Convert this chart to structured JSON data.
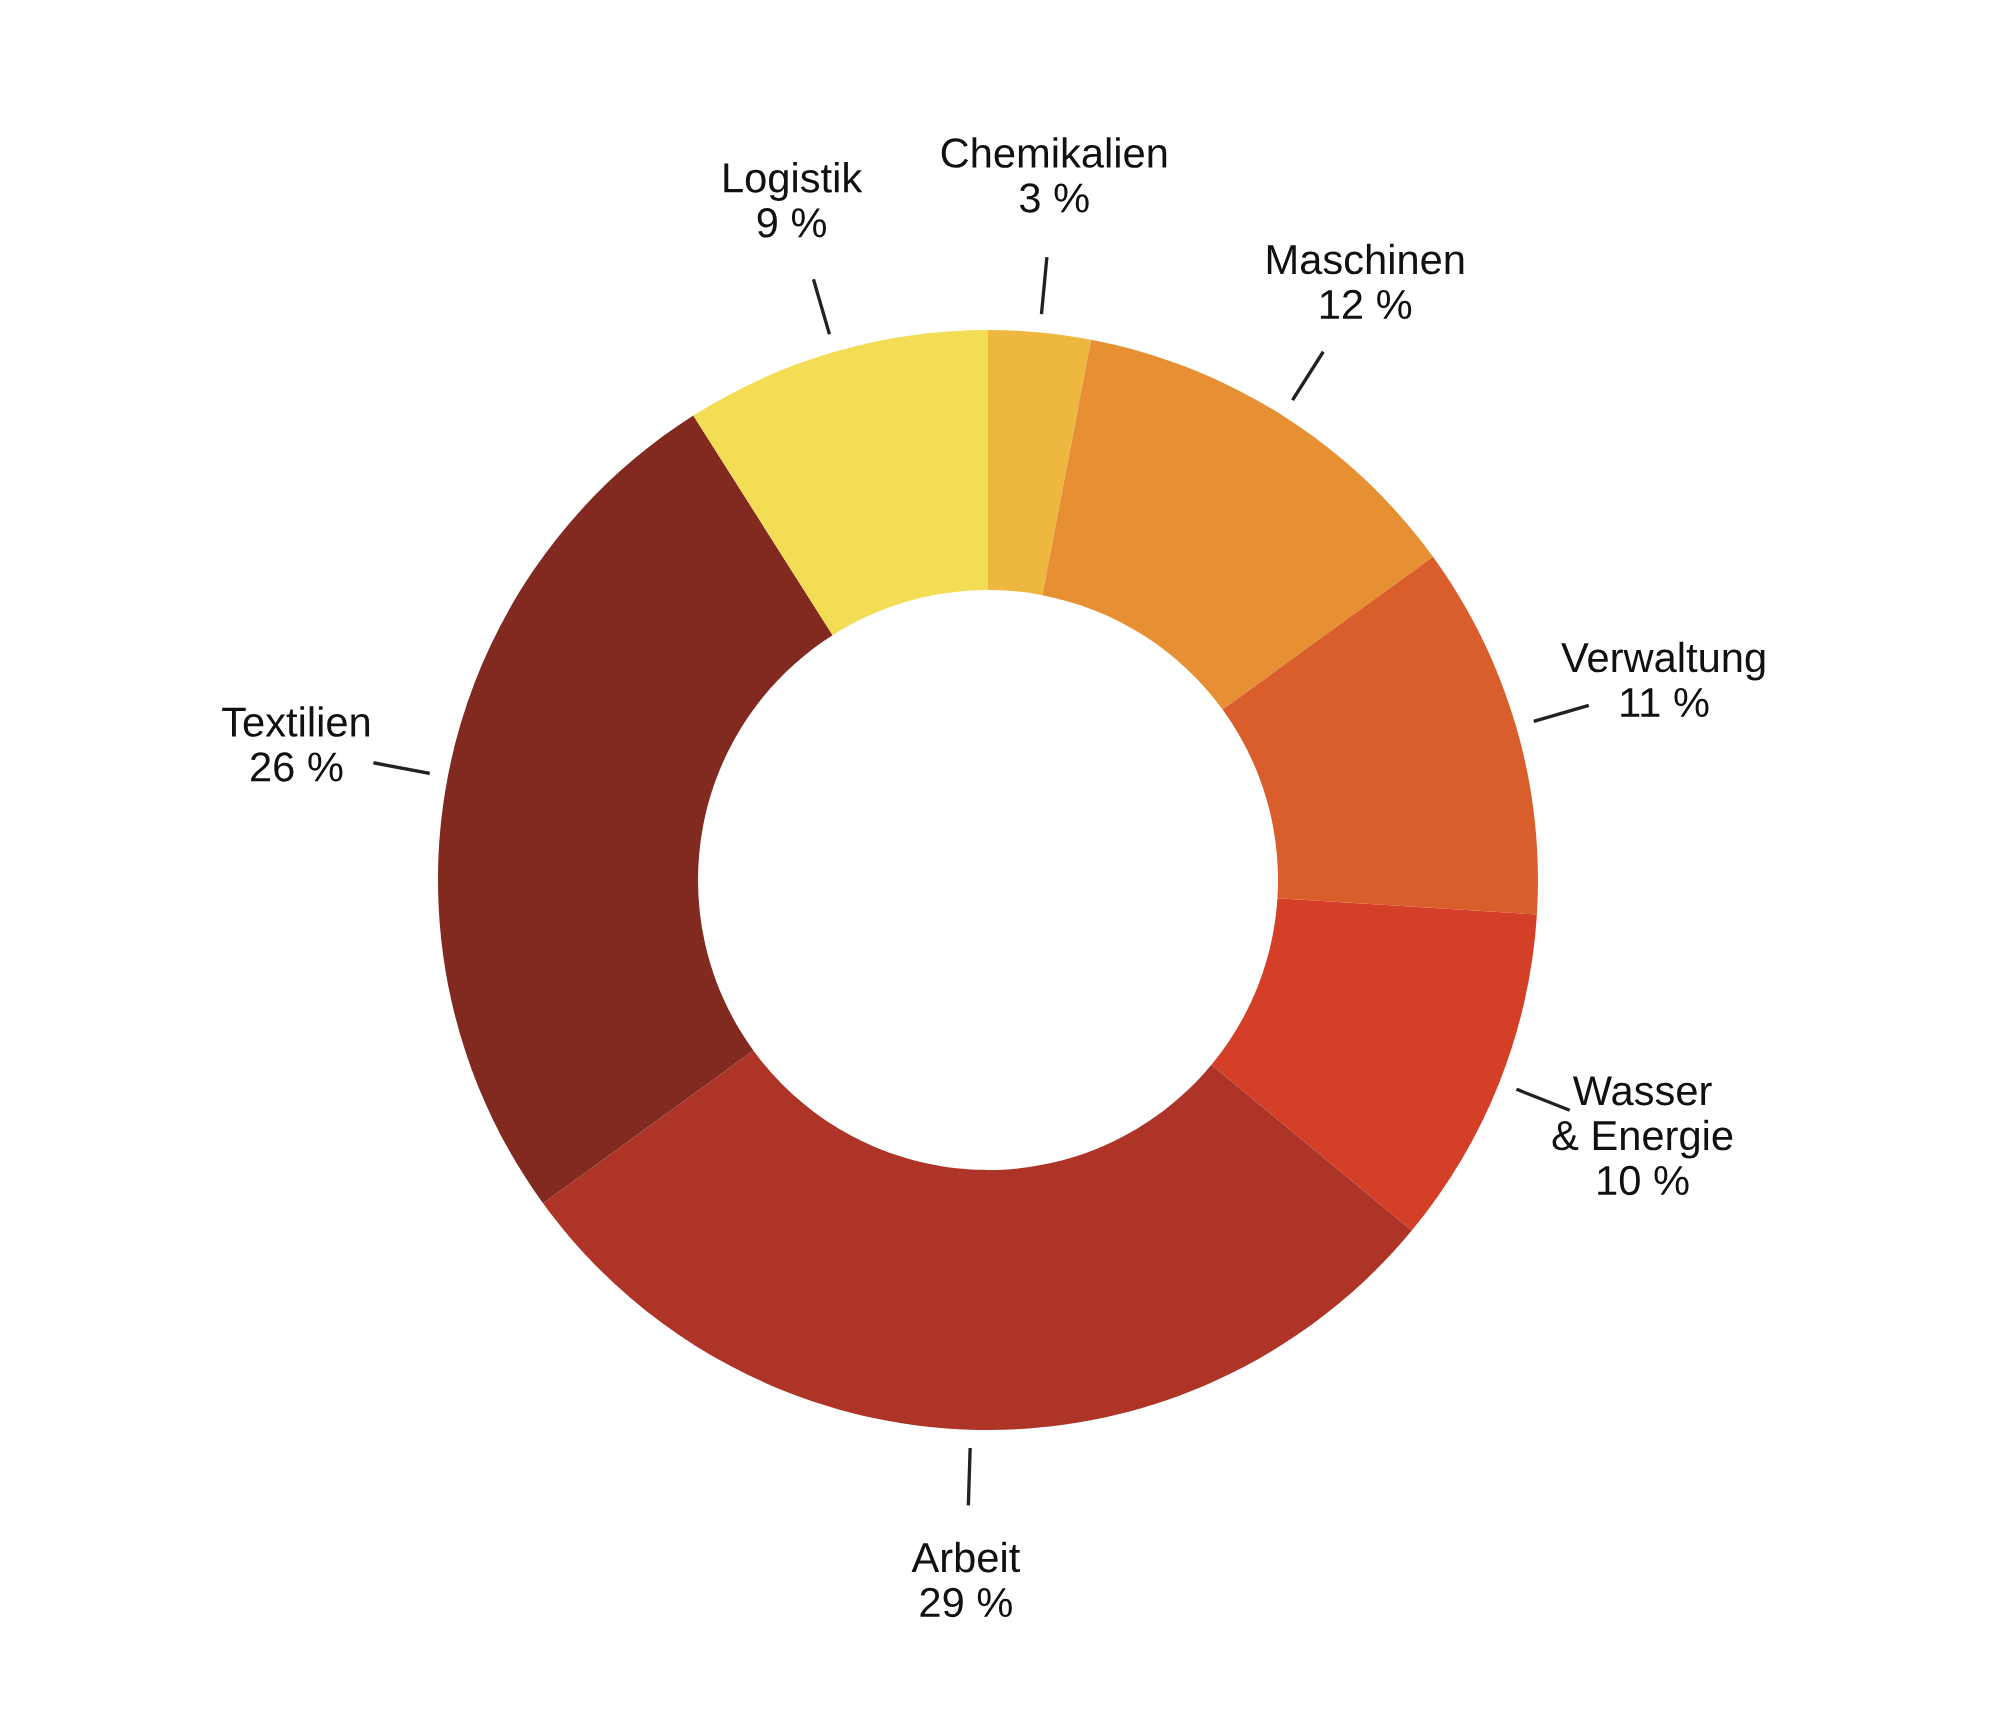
{
  "chart_data": {
    "type": "donut",
    "categories": [
      "Chemikalien",
      "Maschinen",
      "Verwaltung",
      "Wasser\n& Energie",
      "Arbeit",
      "Textilien",
      "Logistik"
    ],
    "values": [
      3,
      12,
      11,
      10,
      29,
      26,
      9
    ],
    "value_labels": [
      "3 %",
      "12 %",
      "11 %",
      "10 %",
      "29 %",
      "26 %",
      "9 %"
    ],
    "colors": [
      "#eeb840",
      "#e69033",
      "#da5e2b",
      "#d43f27",
      "#ad3427",
      "#822a20",
      "#f3dd55"
    ]
  }
}
